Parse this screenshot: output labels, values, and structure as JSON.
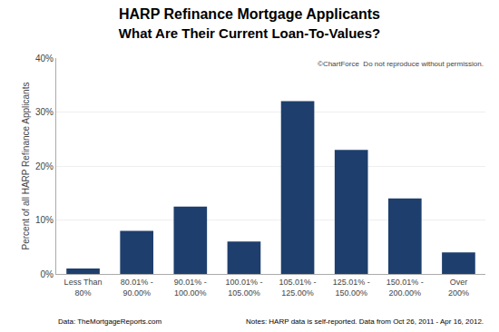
{
  "chart_data": {
    "type": "bar",
    "title": "HARP Refinance Mortgage Applicants",
    "subtitle": "What Are Their Current Loan-To-Values?",
    "categories": [
      "Less Than\n80%",
      "80.01% -\n90.00%",
      "90.01% -\n100.00%",
      "100.01% -\n105.00%",
      "105.01% -\n125.00%",
      "125.01% -\n150.00%",
      "150.01% -\n200.00%",
      "Over\n200%"
    ],
    "values": [
      1.0,
      8.0,
      12.5,
      6.0,
      32.0,
      23.0,
      14.0,
      4.0
    ],
    "color": "#1e3f6d",
    "ylabel": "Percent of all HARP Refinance Applicants",
    "ylim": [
      0,
      40
    ],
    "yticks": [
      {
        "value": 0,
        "label": "0%"
      },
      {
        "value": 10,
        "label": "10%"
      },
      {
        "value": 20,
        "label": "20%"
      },
      {
        "value": 30,
        "label": "30%"
      },
      {
        "value": 40,
        "label": "40%"
      }
    ],
    "grid": true,
    "annotations": [
      "©ChartForce  Do not reproduce without permission.",
      "Data: TheMortgageReports.com",
      "Notes: HARP data is self-reported. Data from Oct 26, 2011 - Apr 16, 2012."
    ]
  }
}
